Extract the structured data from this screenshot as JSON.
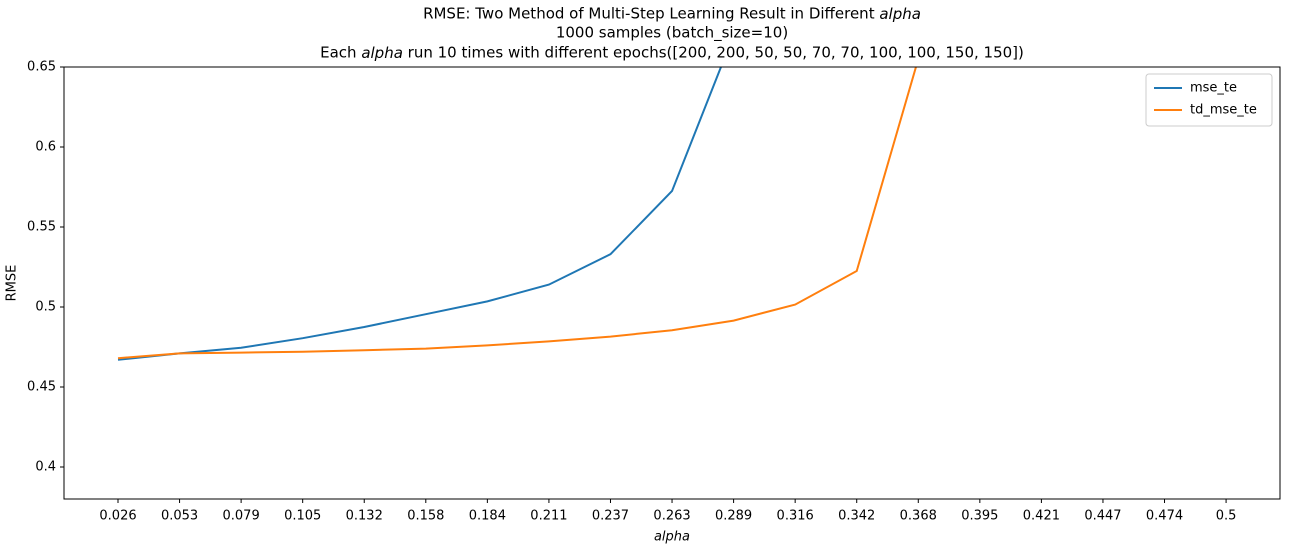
{
  "chart_data": {
    "type": "line",
    "title": [
      "RMSE: Two Method of Multi-Step Learning Result in Different alpha",
      "1000 samples (batch_size=10)",
      "Each alpha run 10 times with different epochs([200, 200, 50, 50, 70, 70, 100, 100, 150, 150])"
    ],
    "xlabel": "alpha",
    "ylabel": "RMSE",
    "categories": [
      "0.026",
      "0.053",
      "0.079",
      "0.105",
      "0.132",
      "0.158",
      "0.184",
      "0.211",
      "0.237",
      "0.263",
      "0.289",
      "0.316",
      "0.342",
      "0.368",
      "0.395",
      "0.421",
      "0.447",
      "0.474",
      "0.5"
    ],
    "series": [
      {
        "name": "mse_te",
        "color": "#1f77b4",
        "values": [
          0.467,
          0.471,
          0.4745,
          0.4805,
          0.4875,
          0.4955,
          0.5035,
          0.514,
          0.533,
          0.5725,
          0.67,
          null,
          null,
          null,
          null,
          null,
          null,
          null,
          null
        ]
      },
      {
        "name": "td_mse_te",
        "color": "#ff7f0e",
        "values": [
          0.468,
          0.471,
          0.4715,
          0.472,
          0.473,
          0.474,
          0.476,
          0.4785,
          0.4815,
          0.4855,
          0.4915,
          0.5015,
          0.5225,
          0.655,
          null,
          null,
          null,
          null,
          null
        ]
      }
    ],
    "ylim": [
      0.38,
      0.65
    ],
    "yticks": [
      0.4,
      0.45,
      0.5,
      0.55,
      0.6,
      0.65
    ],
    "legend": "upper right"
  }
}
